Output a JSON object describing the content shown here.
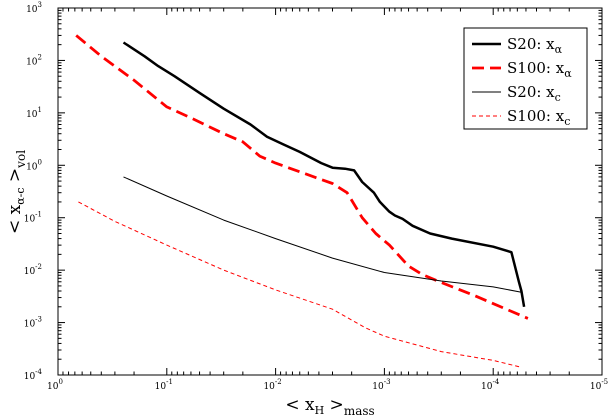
{
  "chart_data": {
    "type": "line",
    "xscale": "log",
    "yscale": "log",
    "x_inverted": true,
    "xlim": [
      1,
      1e-05
    ],
    "ylim": [
      0.0001,
      1000
    ],
    "x_ticks": [
      {
        "value": 1,
        "mant": "10",
        "exp": "0"
      },
      {
        "value": 0.1,
        "mant": "10",
        "exp": "-1"
      },
      {
        "value": 0.01,
        "mant": "10",
        "exp": "-2"
      },
      {
        "value": 0.001,
        "mant": "10",
        "exp": "-3"
      },
      {
        "value": 0.0001,
        "mant": "10",
        "exp": "-4"
      },
      {
        "value": 1e-05,
        "mant": "10",
        "exp": "-5"
      }
    ],
    "y_ticks": [
      {
        "value": 0.0001,
        "mant": "10",
        "exp": "-4"
      },
      {
        "value": 0.001,
        "mant": "10",
        "exp": "-3"
      },
      {
        "value": 0.01,
        "mant": "10",
        "exp": "-2"
      },
      {
        "value": 0.1,
        "mant": "10",
        "exp": "-1"
      },
      {
        "value": 1,
        "mant": "10",
        "exp": "0"
      },
      {
        "value": 10,
        "mant": "10",
        "exp": "1"
      },
      {
        "value": 100,
        "mant": "10",
        "exp": "2"
      },
      {
        "value": 1000,
        "mant": "10",
        "exp": "3"
      }
    ],
    "xlabel": {
      "open": "< x",
      "sub": "H",
      "close": " >",
      "suffix": "mass"
    },
    "ylabel": {
      "open": "< x",
      "sub": "α-c",
      "close": " >",
      "suffix": "vol"
    },
    "legend_position": "top-right",
    "series": [
      {
        "name": "S20:  x",
        "name_sub": "α",
        "color": "#000000",
        "width": 2.5,
        "dash": "",
        "x": [
          0.25,
          0.16,
          0.12,
          0.085,
          0.05,
          0.03,
          0.017,
          0.012,
          0.0085,
          0.006,
          0.0038,
          0.003,
          0.0023,
          0.0019,
          0.0016,
          0.00125,
          0.0011,
          0.0009,
          0.0008,
          0.00068,
          0.00055,
          0.00038,
          0.00024,
          0.0001,
          6.8e-05,
          5.8e-05,
          5.5e-05,
          5.2e-05
        ],
        "y": [
          220,
          120,
          78,
          50,
          24,
          12,
          6,
          3.5,
          2.5,
          1.8,
          1.1,
          0.9,
          0.86,
          0.8,
          0.48,
          0.3,
          0.2,
          0.13,
          0.11,
          0.095,
          0.07,
          0.05,
          0.04,
          0.028,
          0.022,
          0.006,
          0.004,
          0.002
        ]
      },
      {
        "name": "S100: x",
        "name_sub": "α",
        "color": "#ff0000",
        "width": 2.8,
        "dash": "12,6",
        "x": [
          0.68,
          0.4,
          0.2,
          0.1,
          0.06,
          0.03,
          0.02,
          0.014,
          0.01,
          0.006,
          0.003,
          0.0022,
          0.0016,
          0.0012,
          0.0009,
          0.0006,
          0.00045,
          0.0003,
          0.00015,
          4.8e-05
        ],
        "y": [
          300,
          120,
          42,
          13,
          8,
          4,
          2.8,
          1.5,
          1.1,
          0.75,
          0.45,
          0.3,
          0.1,
          0.05,
          0.03,
          0.012,
          0.0083,
          0.0058,
          0.0033,
          0.0012
        ]
      },
      {
        "name": "S20:  x",
        "name_sub": "c",
        "color": "#000000",
        "width": 1,
        "dash": "",
        "x": [
          0.25,
          0.1,
          0.03,
          0.01,
          0.003,
          0.001,
          0.0003,
          0.0001,
          5.5e-05
        ],
        "y": [
          0.6,
          0.26,
          0.09,
          0.04,
          0.017,
          0.009,
          0.0062,
          0.0048,
          0.0038
        ]
      },
      {
        "name": "S100: x",
        "name_sub": "c",
        "color": "#ff0000",
        "width": 1,
        "dash": "4,3",
        "x": [
          0.65,
          0.3,
          0.1,
          0.03,
          0.01,
          0.003,
          0.0015,
          0.001,
          0.0003,
          0.0001,
          5.5e-05
        ],
        "y": [
          0.2,
          0.085,
          0.03,
          0.01,
          0.0042,
          0.0018,
          0.0008,
          0.00055,
          0.00028,
          0.00019,
          0.00014
        ]
      }
    ]
  }
}
